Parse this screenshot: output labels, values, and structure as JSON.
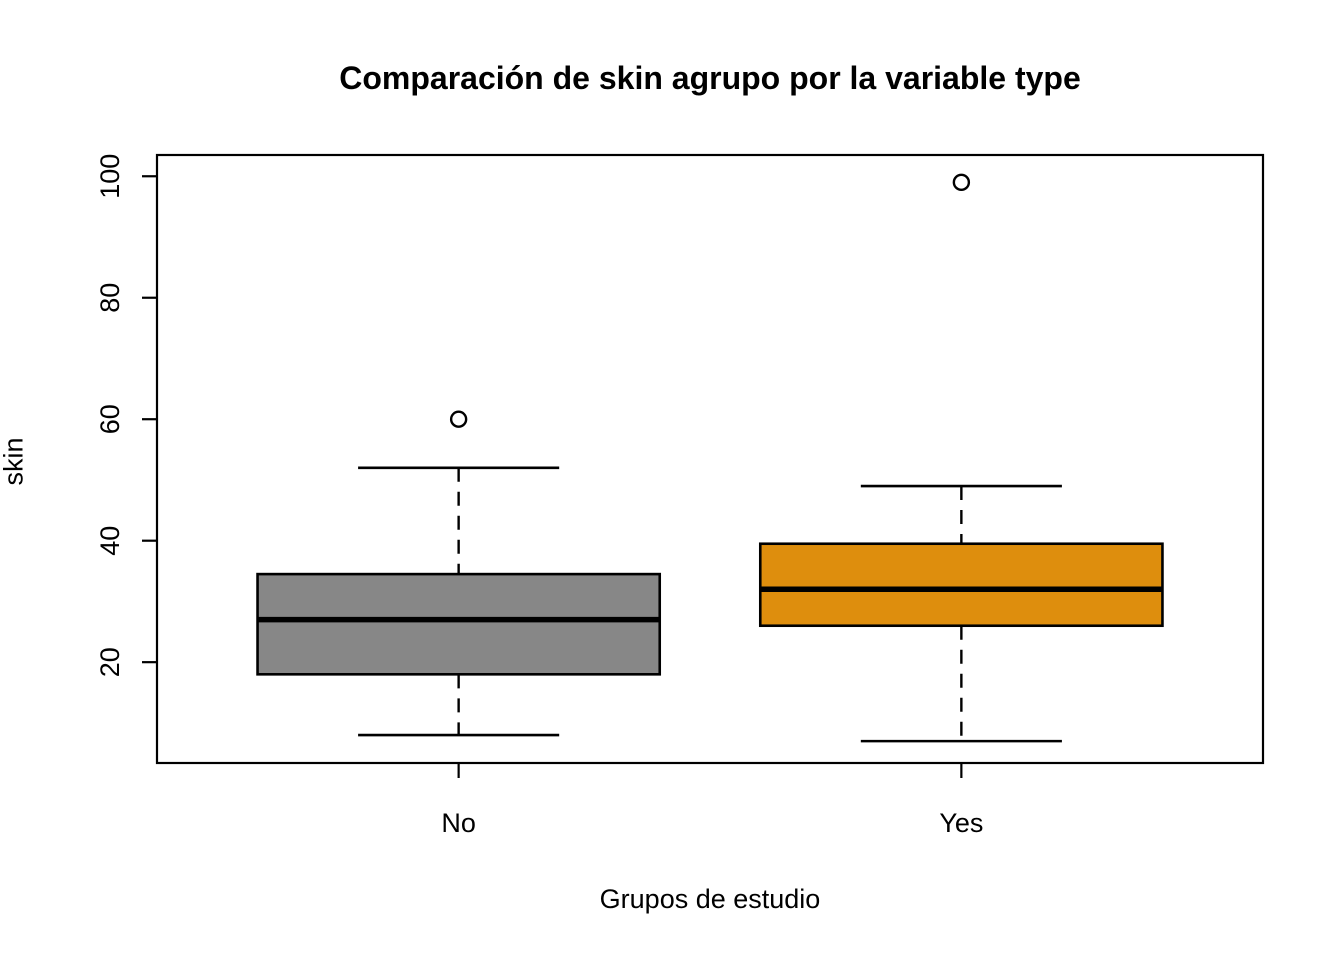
{
  "title": "Comparación de skin agrupo por la variable type",
  "chart_data": {
    "type": "boxplot",
    "title": "Comparación de skin agrupo por la variable type",
    "xlabel": "Grupos de estudio",
    "ylabel": "skin",
    "categories": [
      "No",
      "Yes"
    ],
    "yticks": [
      20,
      40,
      60,
      80,
      100
    ],
    "ylim": [
      3.4,
      103.5
    ],
    "xlim": [
      0.4,
      2.6
    ],
    "grid": false,
    "legend": "none",
    "box_width": 0.8,
    "cap_width": 0.4,
    "series": [
      {
        "name": "No",
        "x": 1,
        "lower_whisker": 8,
        "q1": 18,
        "median": 27,
        "q3": 34.5,
        "upper_whisker": 52,
        "outliers": [
          60
        ],
        "fill": "#878787"
      },
      {
        "name": "Yes",
        "x": 2,
        "lower_whisker": 7,
        "q1": 26,
        "median": 32,
        "q3": 39.5,
        "upper_whisker": 49,
        "outliers": [
          99
        ],
        "fill": "#DE8E0D"
      }
    ],
    "colors": {
      "box_border": "#000000",
      "median": "#000000",
      "whisker": "#000000",
      "axis": "#000000",
      "background": "#FFFFFF",
      "fill_no": "#878787",
      "fill_yes": "#DE8E0D"
    }
  }
}
